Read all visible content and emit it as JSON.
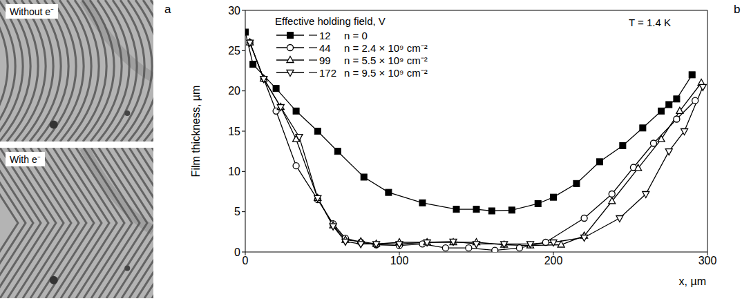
{
  "panel_a": {
    "label": "a",
    "images": [
      {
        "caption": "Without e⁻"
      },
      {
        "caption": "With e⁻"
      }
    ]
  },
  "chart_data": {
    "type": "line",
    "panel_label": "b",
    "legend_title": "Effective holding field, V",
    "annotation": "T = 1.4 K",
    "x_label": "x, µm",
    "y_label": "Film thickness, µm",
    "xlim": [
      0,
      300
    ],
    "xticks": [
      0,
      100,
      200,
      300
    ],
    "ylim": [
      0,
      30
    ],
    "yticks": [
      0,
      5,
      10,
      15,
      20,
      25,
      30
    ],
    "legend": "upper left",
    "series": [
      {
        "name": "12",
        "label": "n = 0",
        "color": "#000000",
        "marker": "square",
        "x": [
          0,
          5,
          20,
          33,
          47,
          60,
          77,
          93,
          115,
          137,
          150,
          160,
          173,
          190,
          200,
          215,
          230,
          245,
          258,
          270,
          275,
          280,
          290
        ],
        "values": [
          27.3,
          23.3,
          20.3,
          17.5,
          15,
          12.5,
          9.3,
          7.4,
          6.1,
          5.3,
          5.3,
          5.1,
          5.2,
          6,
          6.8,
          8.5,
          11.2,
          13.2,
          15.4,
          17.5,
          18.3,
          19,
          22
        ]
      },
      {
        "name": "44",
        "label": "n = 2.4 × 10⁹ cm⁻²",
        "color": "#000000",
        "marker": "open-circle",
        "x": [
          3,
          12,
          20,
          33,
          47,
          57,
          65,
          75,
          85,
          100,
          115,
          130,
          145,
          162,
          178,
          195,
          220,
          238,
          252,
          265,
          280,
          292
        ],
        "values": [
          26,
          21.5,
          17.5,
          10.7,
          6.5,
          3.5,
          1.7,
          1.2,
          0.9,
          0.8,
          1,
          0.5,
          0.5,
          0.2,
          0.5,
          1.2,
          4.2,
          7.2,
          10.5,
          13.5,
          16.5,
          18.8
        ]
      },
      {
        "name": "99",
        "label": "n = 5.5 × 10⁹ cm⁻²",
        "color": "#000000",
        "marker": "open-triangle-up",
        "x": [
          3,
          12,
          23,
          33,
          47,
          57,
          65,
          75,
          85,
          100,
          118,
          135,
          150,
          168,
          185,
          205,
          220,
          238,
          255,
          270,
          282,
          296
        ],
        "values": [
          26,
          21.5,
          18,
          14,
          6.7,
          3.3,
          1.5,
          1.3,
          1,
          1.2,
          1.2,
          1.2,
          1.2,
          0.9,
          0.8,
          0.9,
          2,
          6.3,
          10.4,
          14,
          17.5,
          21
        ]
      },
      {
        "name": "172",
        "label": "n = 9.5 × 10⁹ cm⁻²",
        "color": "#000000",
        "marker": "open-triangle-down",
        "x": [
          3,
          12,
          23,
          35,
          47,
          57,
          65,
          75,
          85,
          100,
          118,
          135,
          150,
          168,
          185,
          200,
          220,
          243,
          260,
          275,
          285,
          297
        ],
        "values": [
          26,
          21.5,
          18,
          14.3,
          6.7,
          3.2,
          1.3,
          1,
          1,
          1,
          1.2,
          1.3,
          1,
          1,
          1,
          1.2,
          1.8,
          4.2,
          7.2,
          12.5,
          15,
          20.5
        ]
      }
    ]
  }
}
